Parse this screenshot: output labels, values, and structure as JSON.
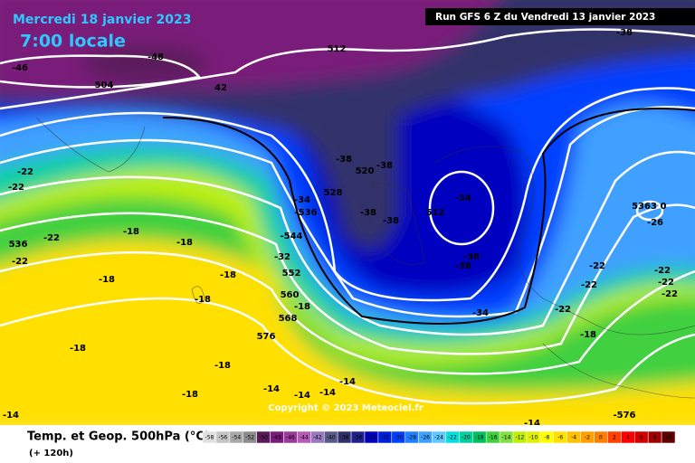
{
  "header": {
    "date": "Mercredi 18 janvier 2023",
    "time": "7:00 locale",
    "run": "Run GFS 6 Z du Vendredi 13 janvier 2023"
  },
  "footer": {
    "title": "Temp. et Geop. 500hPa (°C)",
    "lead": "(+ 120h)",
    "copyright": "Copyright © 2023 Meteociel.fr"
  },
  "legend": {
    "ticks": [
      -58,
      -56,
      -54,
      -52,
      -50,
      -48,
      -46,
      -44,
      -42,
      -40,
      -38,
      -36,
      -34,
      -32,
      -30,
      -28,
      -26,
      -24,
      -22,
      -20,
      -18,
      -16,
      -14,
      -12,
      -10,
      -8,
      -6,
      -4,
      -2,
      0,
      2,
      4,
      6,
      8,
      10
    ],
    "colors": [
      "#e0e0e0",
      "#c4c4c4",
      "#a8a8a8",
      "#8c8c8c",
      "#5a1a5a",
      "#7a1a7a",
      "#9a3a9a",
      "#b85ab8",
      "#9a78c0",
      "#5a5a8a",
      "#30306a",
      "#20208c",
      "#0000c0",
      "#0020e0",
      "#0040ff",
      "#2080ff",
      "#40a0ff",
      "#60c8ff",
      "#00e0e0",
      "#00d0a0",
      "#00c060",
      "#40d040",
      "#80e040",
      "#c0f000",
      "#e0f000",
      "#ffff00",
      "#ffe000",
      "#ffc000",
      "#ffa000",
      "#ff8000",
      "#ff4000",
      "#ff0000",
      "#d00000",
      "#a00000",
      "#600000"
    ]
  },
  "map": {
    "labels": [
      "-46",
      "-48",
      "504",
      "512",
      "42",
      "-38",
      "-22",
      "-22",
      "536",
      "-22",
      "-22",
      "-18",
      "-18",
      "-18",
      "-18",
      "-18",
      "-18",
      "-18",
      "-18",
      "-14",
      "-14",
      "-14",
      "-14",
      "-14",
      "-38",
      "520",
      "-38",
      "528",
      "-34",
      "-536",
      "-38",
      "-38",
      "512",
      "-34",
      "-38",
      "-38",
      "-34",
      "-544",
      "-32",
      "552",
      "560",
      "-18",
      "568",
      "576",
      "5363",
      "0",
      "-26",
      "-22",
      "-22",
      "-22",
      "-22",
      "-22",
      "-22",
      "-18",
      "-576",
      "-14"
    ]
  }
}
